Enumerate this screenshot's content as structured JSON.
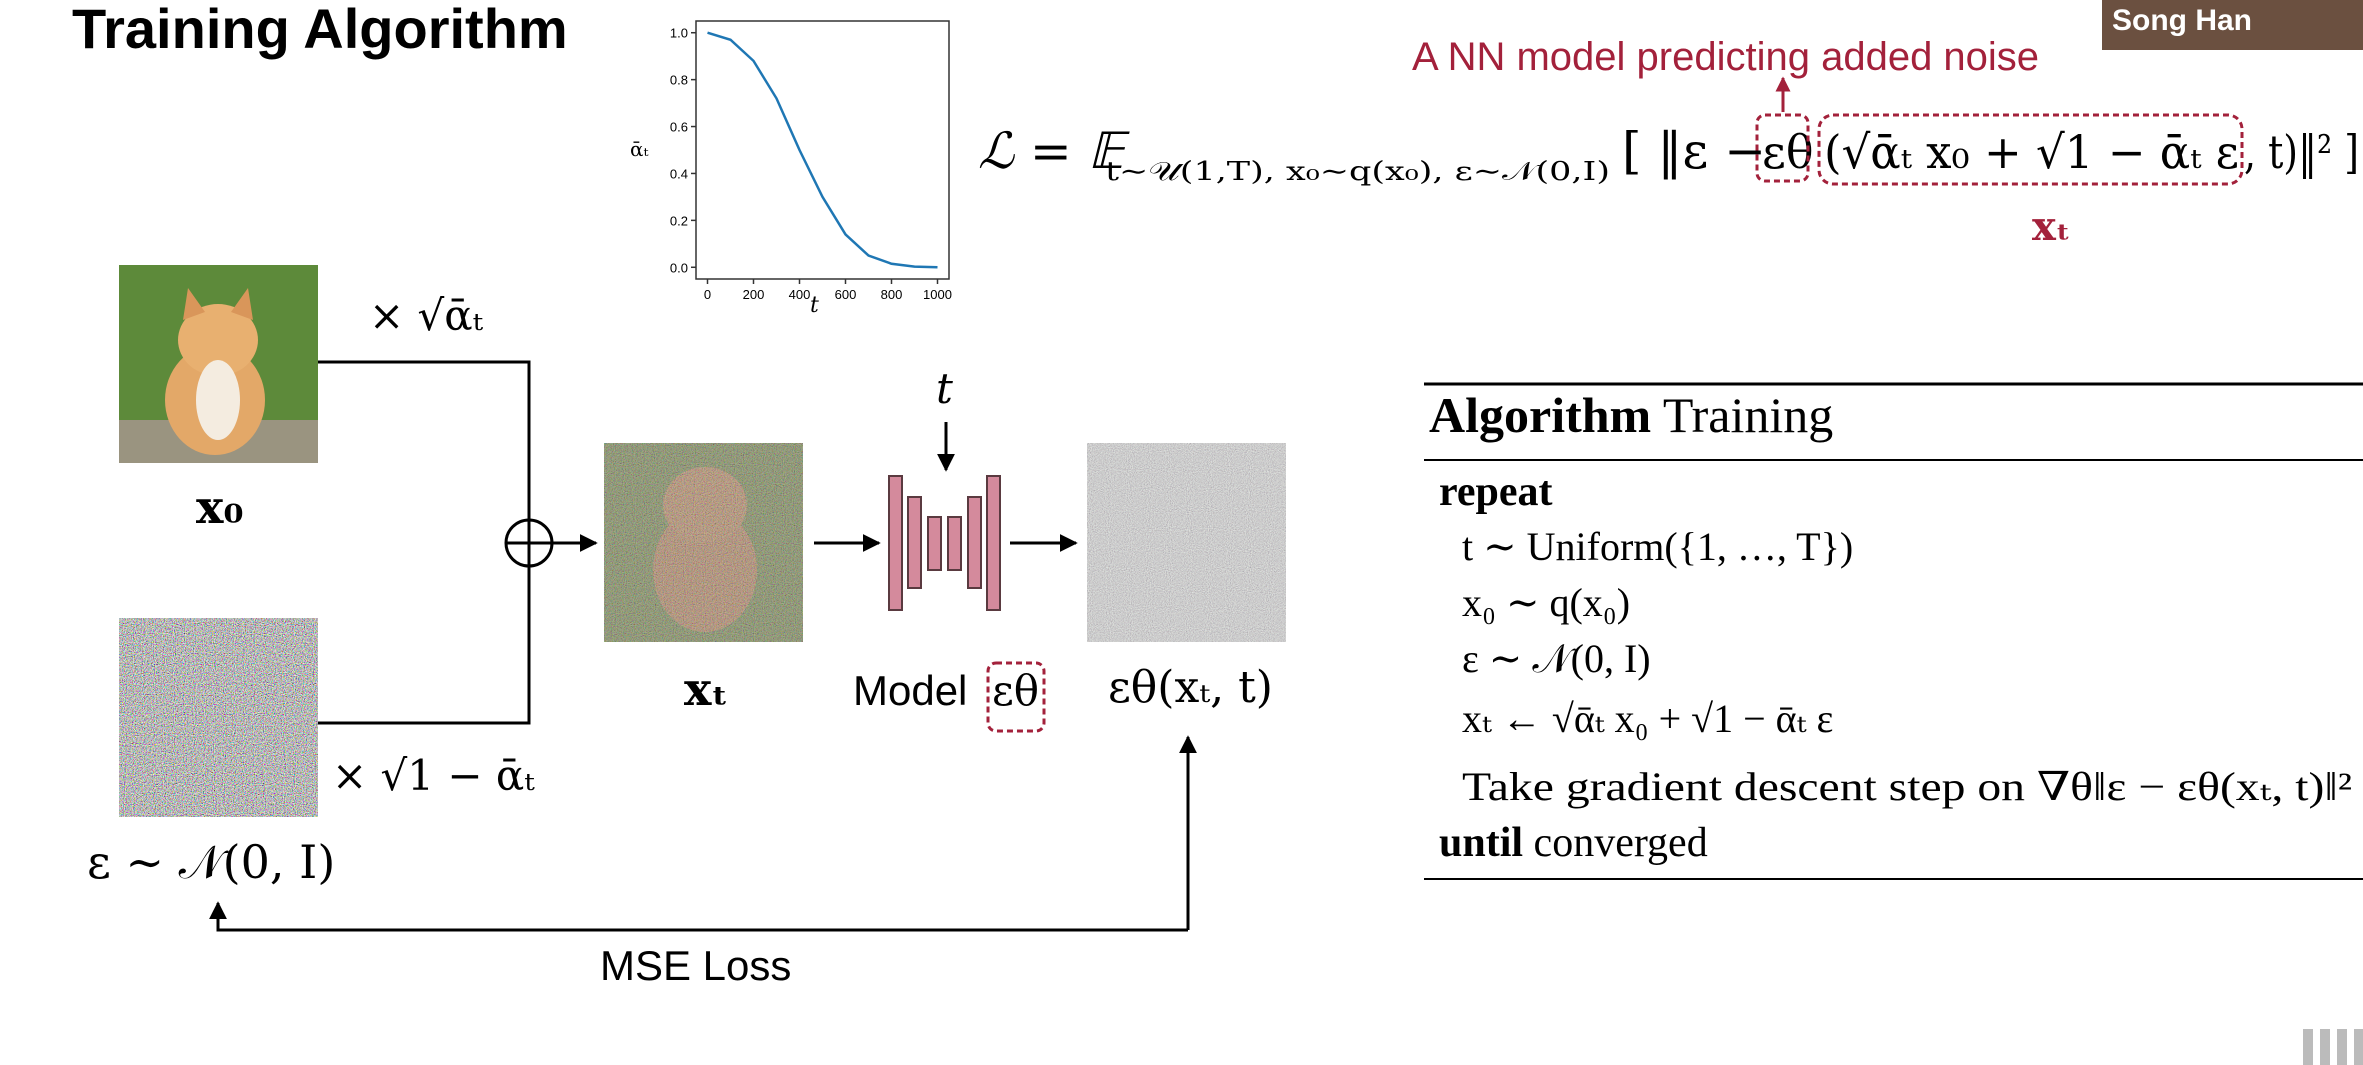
{
  "header": {
    "title": "Training Algorithm",
    "presenter": "Song Han"
  },
  "schedule_plot": {
    "type": "line",
    "y_label": "ᾱₜ",
    "x_label": "t",
    "x": [
      0,
      100,
      200,
      300,
      400,
      500,
      600,
      700,
      800,
      900,
      1000
    ],
    "values": [
      1.0,
      0.97,
      0.88,
      0.72,
      0.5,
      0.3,
      0.14,
      0.05,
      0.015,
      0.003,
      0.0
    ],
    "color": "#1f77b4",
    "xlim": [
      -50,
      1050
    ],
    "ylim": [
      -0.05,
      1.05
    ],
    "xticks": [
      0,
      200,
      400,
      600,
      800,
      1000
    ],
    "yticks": [
      {
        "value": 0,
        "label": "0.0"
      },
      0.2,
      0.4,
      0.6,
      0.8,
      {
        "value": 1,
        "label": "1.0"
      }
    ]
  },
  "loss": {
    "annotation": "A NN model predicting added noise",
    "lhs": "ℒ = 𝔼",
    "expectation": "t∼𝒰(1,T), x₀∼q(x₀), ε∼𝒩(0,I)",
    "open": "[ ‖ε −",
    "model": "εθ",
    "input": "(√ᾱₜ x₀ + √1 − ᾱₜ ε",
    "close": ", t)‖² ]",
    "input_label": "xₜ"
  },
  "diagram": {
    "scale_x0": "× √ᾱₜ",
    "x0_label": "x₀",
    "scale_noise": "× √1 − ᾱₜ",
    "noise_label": "ε ∼ 𝒩(0, I)",
    "xt_label": "xₜ",
    "time_label": "t",
    "model_label": "Model",
    "model_symbol": "εθ",
    "output_label": "εθ(xₜ, t)",
    "loss_label": "MSE Loss"
  },
  "algorithm": {
    "keyword": "Algorithm",
    "name": "Training",
    "start_keyword": "repeat",
    "lines": [
      "t ∼ Uniform({1, …, T})",
      "x₀ ∼ q(x₀)",
      "ε ∼ 𝒩(0, I)",
      "xₜ ← √ᾱₜ x₀ + √1 − ᾱₜ ε",
      "Take gradient descent step on ∇θ‖ε − εθ(xₜ, t)‖²"
    ],
    "end_keyword": "until",
    "end_text": "converged"
  }
}
